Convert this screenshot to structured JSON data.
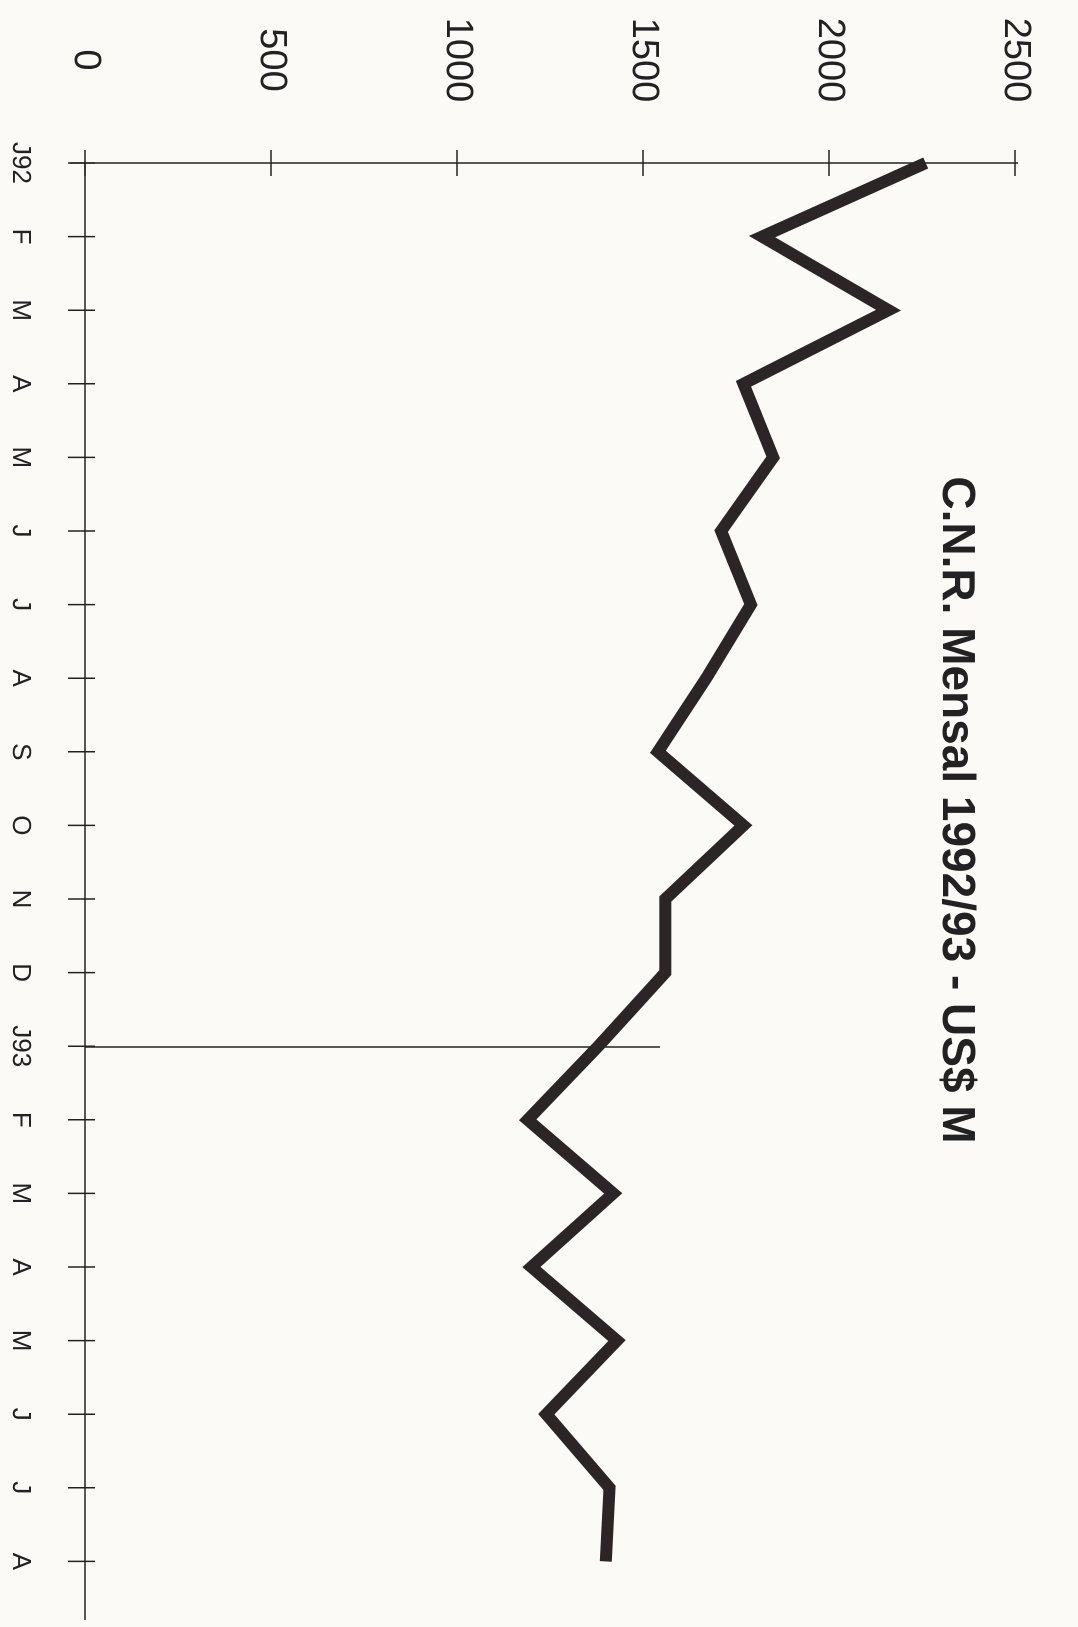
{
  "chart_data": {
    "type": "line",
    "title": "C.N.R. Mensal 1992/93  -  US$ M",
    "categories": [
      "J92",
      "F",
      "M",
      "A",
      "M",
      "J",
      "J",
      "A",
      "S",
      "O",
      "N",
      "D",
      "J93",
      "F",
      "M",
      "A",
      "M",
      "J",
      "J",
      "A"
    ],
    "values": [
      2260,
      1820,
      2160,
      1770,
      1850,
      1710,
      1790,
      1670,
      1540,
      1770,
      1560,
      1560,
      1380,
      1190,
      1420,
      1200,
      1430,
      1240,
      1410,
      1400
    ],
    "color": "#2b2525",
    "ylim": [
      0,
      2500
    ],
    "yticks": [
      0,
      500,
      1000,
      1500,
      2000,
      2500
    ]
  }
}
